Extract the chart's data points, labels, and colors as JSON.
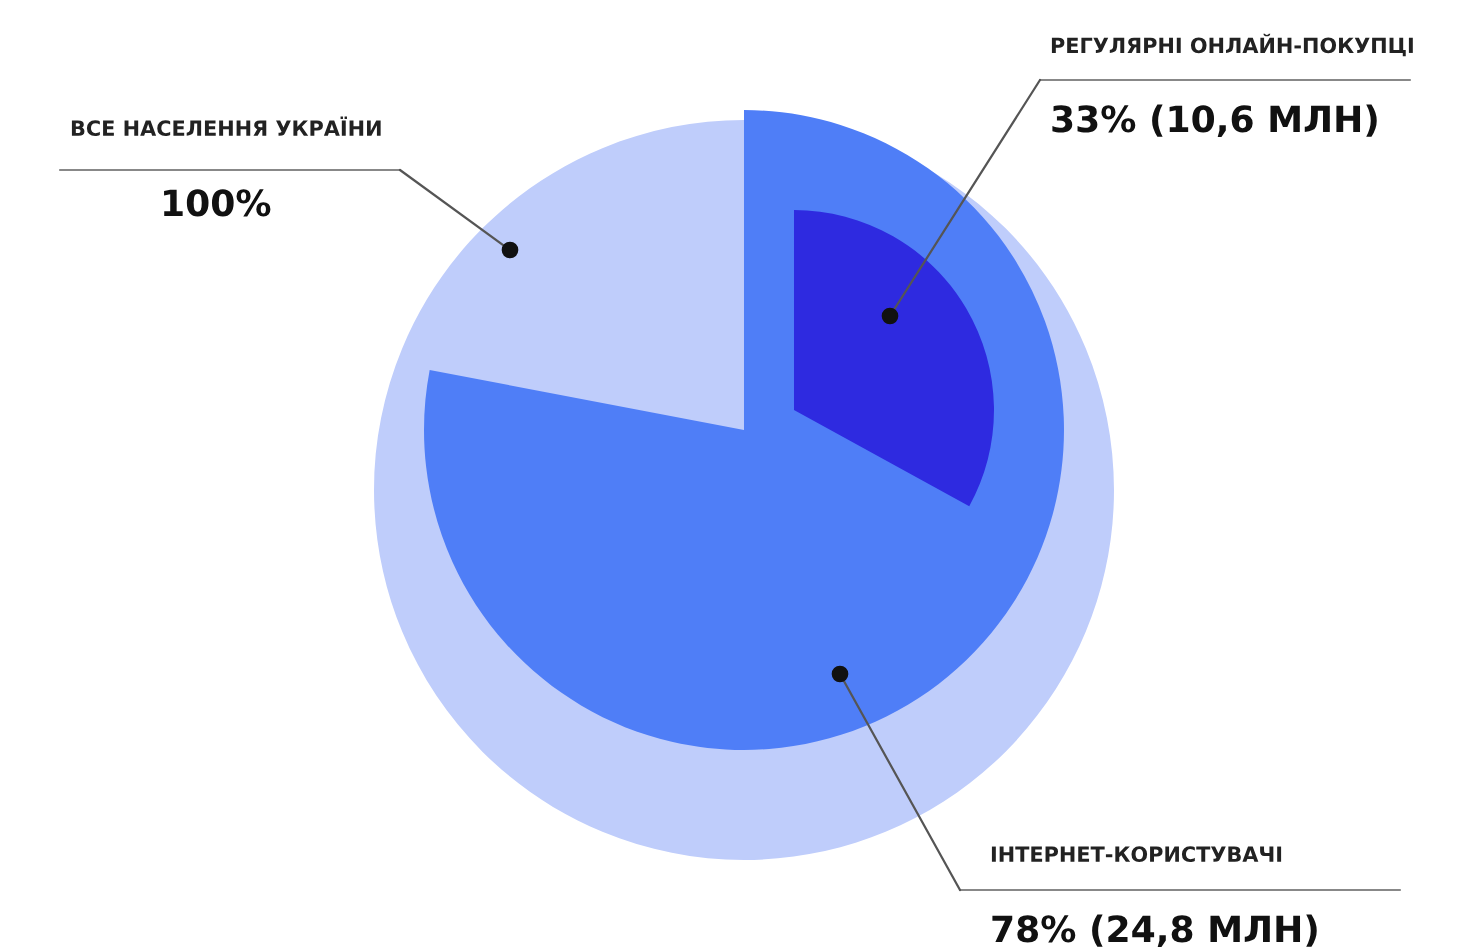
{
  "chart_data": {
    "type": "other",
    "categories": [
      "ВСЕ НАСЕЛЕННЯ УКРАЇНИ",
      "ІНТЕРНЕТ-КОРИСТУВАЧІ",
      "РЕГУЛЯРНІ ОНЛАЙН-ПОКУПЦІ"
    ],
    "values": [
      100,
      78,
      33
    ],
    "value_labels": [
      "100%",
      "78% (24,8 МЛН)",
      "33% (10,6 МЛН)"
    ],
    "colors": [
      "#bfcdfb",
      "#4f7ef7",
      "#2e2ae0"
    ]
  }
}
